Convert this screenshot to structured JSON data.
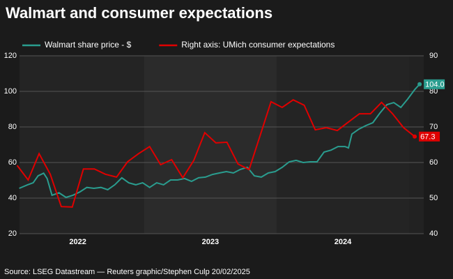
{
  "chart_data": {
    "type": "line",
    "title": "Walmart and consumer expectations",
    "source": "Source: LSEG Datastream — Reuters graphic/Stephen Culp 20/02/2025",
    "xlim": [
      2022.06,
      2025.11
    ],
    "xticks": [
      {
        "value": 2022.5,
        "label": "2022"
      },
      {
        "value": 2023.5,
        "label": "2023"
      },
      {
        "value": 2024.5,
        "label": "2024"
      }
    ],
    "ylim": [
      20,
      120
    ],
    "yticks": [
      20,
      40,
      60,
      80,
      100,
      120
    ],
    "y2lim": [
      40,
      90
    ],
    "y2ticks": [
      40,
      50,
      60,
      70,
      80,
      90
    ],
    "grid": true,
    "legend": "top",
    "series": [
      {
        "name": "Walmart share price - $",
        "color": "#2a9d8f",
        "axis": "y",
        "end_label": "104.0",
        "x": [
          2022.058,
          2022.121,
          2022.163,
          2022.2,
          2022.242,
          2022.268,
          2022.305,
          2022.358,
          2022.411,
          2022.463,
          2022.516,
          2022.568,
          2022.621,
          2022.674,
          2022.726,
          2022.779,
          2022.832,
          2022.884,
          2022.937,
          2022.989,
          2023.042,
          2023.095,
          2023.147,
          2023.2,
          2023.253,
          2023.305,
          2023.358,
          2023.411,
          2023.463,
          2023.516,
          2023.568,
          2023.621,
          2023.674,
          2023.726,
          2023.779,
          2023.832,
          2023.884,
          2023.937,
          2023.989,
          2024.042,
          2024.095,
          2024.147,
          2024.2,
          2024.253,
          2024.305,
          2024.358,
          2024.411,
          2024.463,
          2024.516,
          2024.542,
          2024.568,
          2024.621,
          2024.674,
          2024.726,
          2024.779,
          2024.832,
          2024.884,
          2024.937,
          2024.989,
          2025.042,
          2025.079
        ],
        "values": [
          45.5,
          47.5,
          48.6,
          52.5,
          54,
          51,
          41.6,
          43,
          40.4,
          41.6,
          43.5,
          46,
          45.5,
          46,
          44.7,
          47.5,
          51.4,
          48.6,
          47.5,
          48.6,
          46,
          48.6,
          47.5,
          50.2,
          50.2,
          51,
          49.4,
          51.4,
          51.8,
          53.3,
          54.1,
          54.9,
          54.1,
          56.1,
          57.3,
          52.5,
          51.8,
          54.1,
          54.9,
          57.3,
          60.4,
          61.2,
          60,
          60.4,
          60.4,
          65.9,
          67,
          69,
          69,
          68.2,
          76,
          78.8,
          80.8,
          82.4,
          87.8,
          92.5,
          93.7,
          91,
          95.7,
          101,
          104
        ]
      },
      {
        "name": "Right axis: UMich consumer expectations",
        "color": "#e00000",
        "axis": "y2",
        "end_label": "67.3",
        "x": [
          2022.042,
          2022.125,
          2022.208,
          2022.292,
          2022.375,
          2022.458,
          2022.542,
          2022.625,
          2022.708,
          2022.792,
          2022.875,
          2022.958,
          2023.042,
          2023.125,
          2023.208,
          2023.292,
          2023.375,
          2023.458,
          2023.542,
          2023.625,
          2023.708,
          2023.792,
          2023.875,
          2023.958,
          2024.042,
          2024.125,
          2024.208,
          2024.292,
          2024.375,
          2024.458,
          2024.542,
          2024.625,
          2024.708,
          2024.792,
          2024.875,
          2024.958,
          2025.042
        ],
        "values": [
          59.2,
          55.1,
          62.5,
          56.7,
          47.6,
          47.5,
          58.2,
          58.2,
          56.7,
          55.9,
          60.2,
          62.5,
          64.5,
          59.4,
          60.8,
          55.7,
          60.6,
          68.4,
          65.5,
          65.7,
          59.6,
          58,
          67.5,
          77.1,
          75.5,
          77.6,
          76.1,
          69.2,
          69.8,
          69,
          71.4,
          73.7,
          73.7,
          76.9,
          73.7,
          69.8,
          67.3
        ]
      }
    ]
  }
}
